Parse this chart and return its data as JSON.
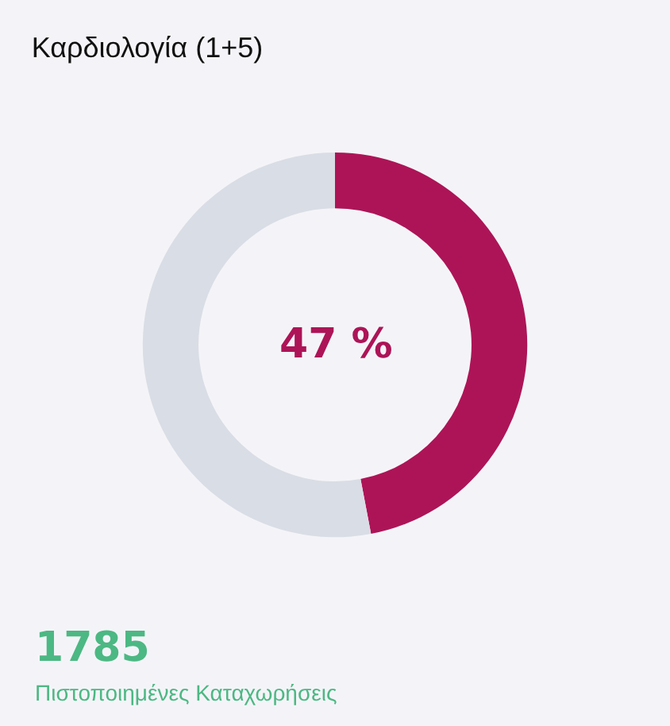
{
  "chart_data": {
    "type": "donut",
    "title": "Καρδιολογία (1+5)",
    "categories": [
      null,
      null
    ],
    "values": [
      47,
      53
    ],
    "colors": [
      "#ad1457",
      "#d9dde5"
    ],
    "annotations": [
      "47 %",
      "1785",
      "Πιστοποιημένες Καταχωρήσεις"
    ],
    "legend": false
  }
}
